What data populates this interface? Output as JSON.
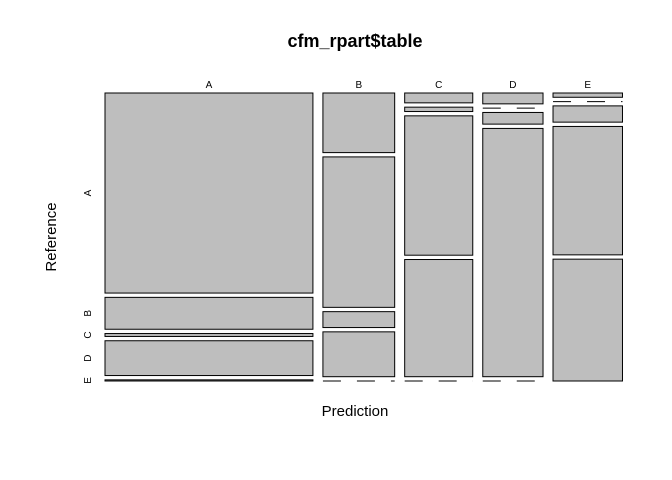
{
  "chart_data": {
    "type": "mosaic",
    "title": "cfm_rpart$table",
    "xlabel": "Prediction",
    "ylabel": "Reference",
    "prediction_levels": [
      "A",
      "B",
      "C",
      "D",
      "E"
    ],
    "reference_levels": [
      "A",
      "B",
      "C",
      "D",
      "E"
    ],
    "column_proportions": [
      0.452,
      0.156,
      0.148,
      0.131,
      0.151
    ],
    "table": [
      {
        "prediction": "A",
        "counts": {
          "A": 0.69,
          "B": 0.11,
          "C": 0.01,
          "D": 0.12,
          "E": 0.004
        }
      },
      {
        "prediction": "B",
        "counts": {
          "A": 0.21,
          "B": 0.53,
          "C": 0.056,
          "D": 0.158,
          "E": 0.0
        }
      },
      {
        "prediction": "C",
        "counts": {
          "A": 0.036,
          "B": 0.016,
          "C": 0.509,
          "D": 0.428,
          "E": 0.0
        }
      },
      {
        "prediction": "D",
        "counts": {
          "A": 0.04,
          "B": 0.0,
          "C": 0.043,
          "D": 0.915,
          "E": 0.0
        }
      },
      {
        "prediction": "E",
        "counts": {
          "A": 0.015,
          "B": 0.0,
          "C": 0.057,
          "D": 0.45,
          "E": 0.427
        }
      }
    ]
  }
}
